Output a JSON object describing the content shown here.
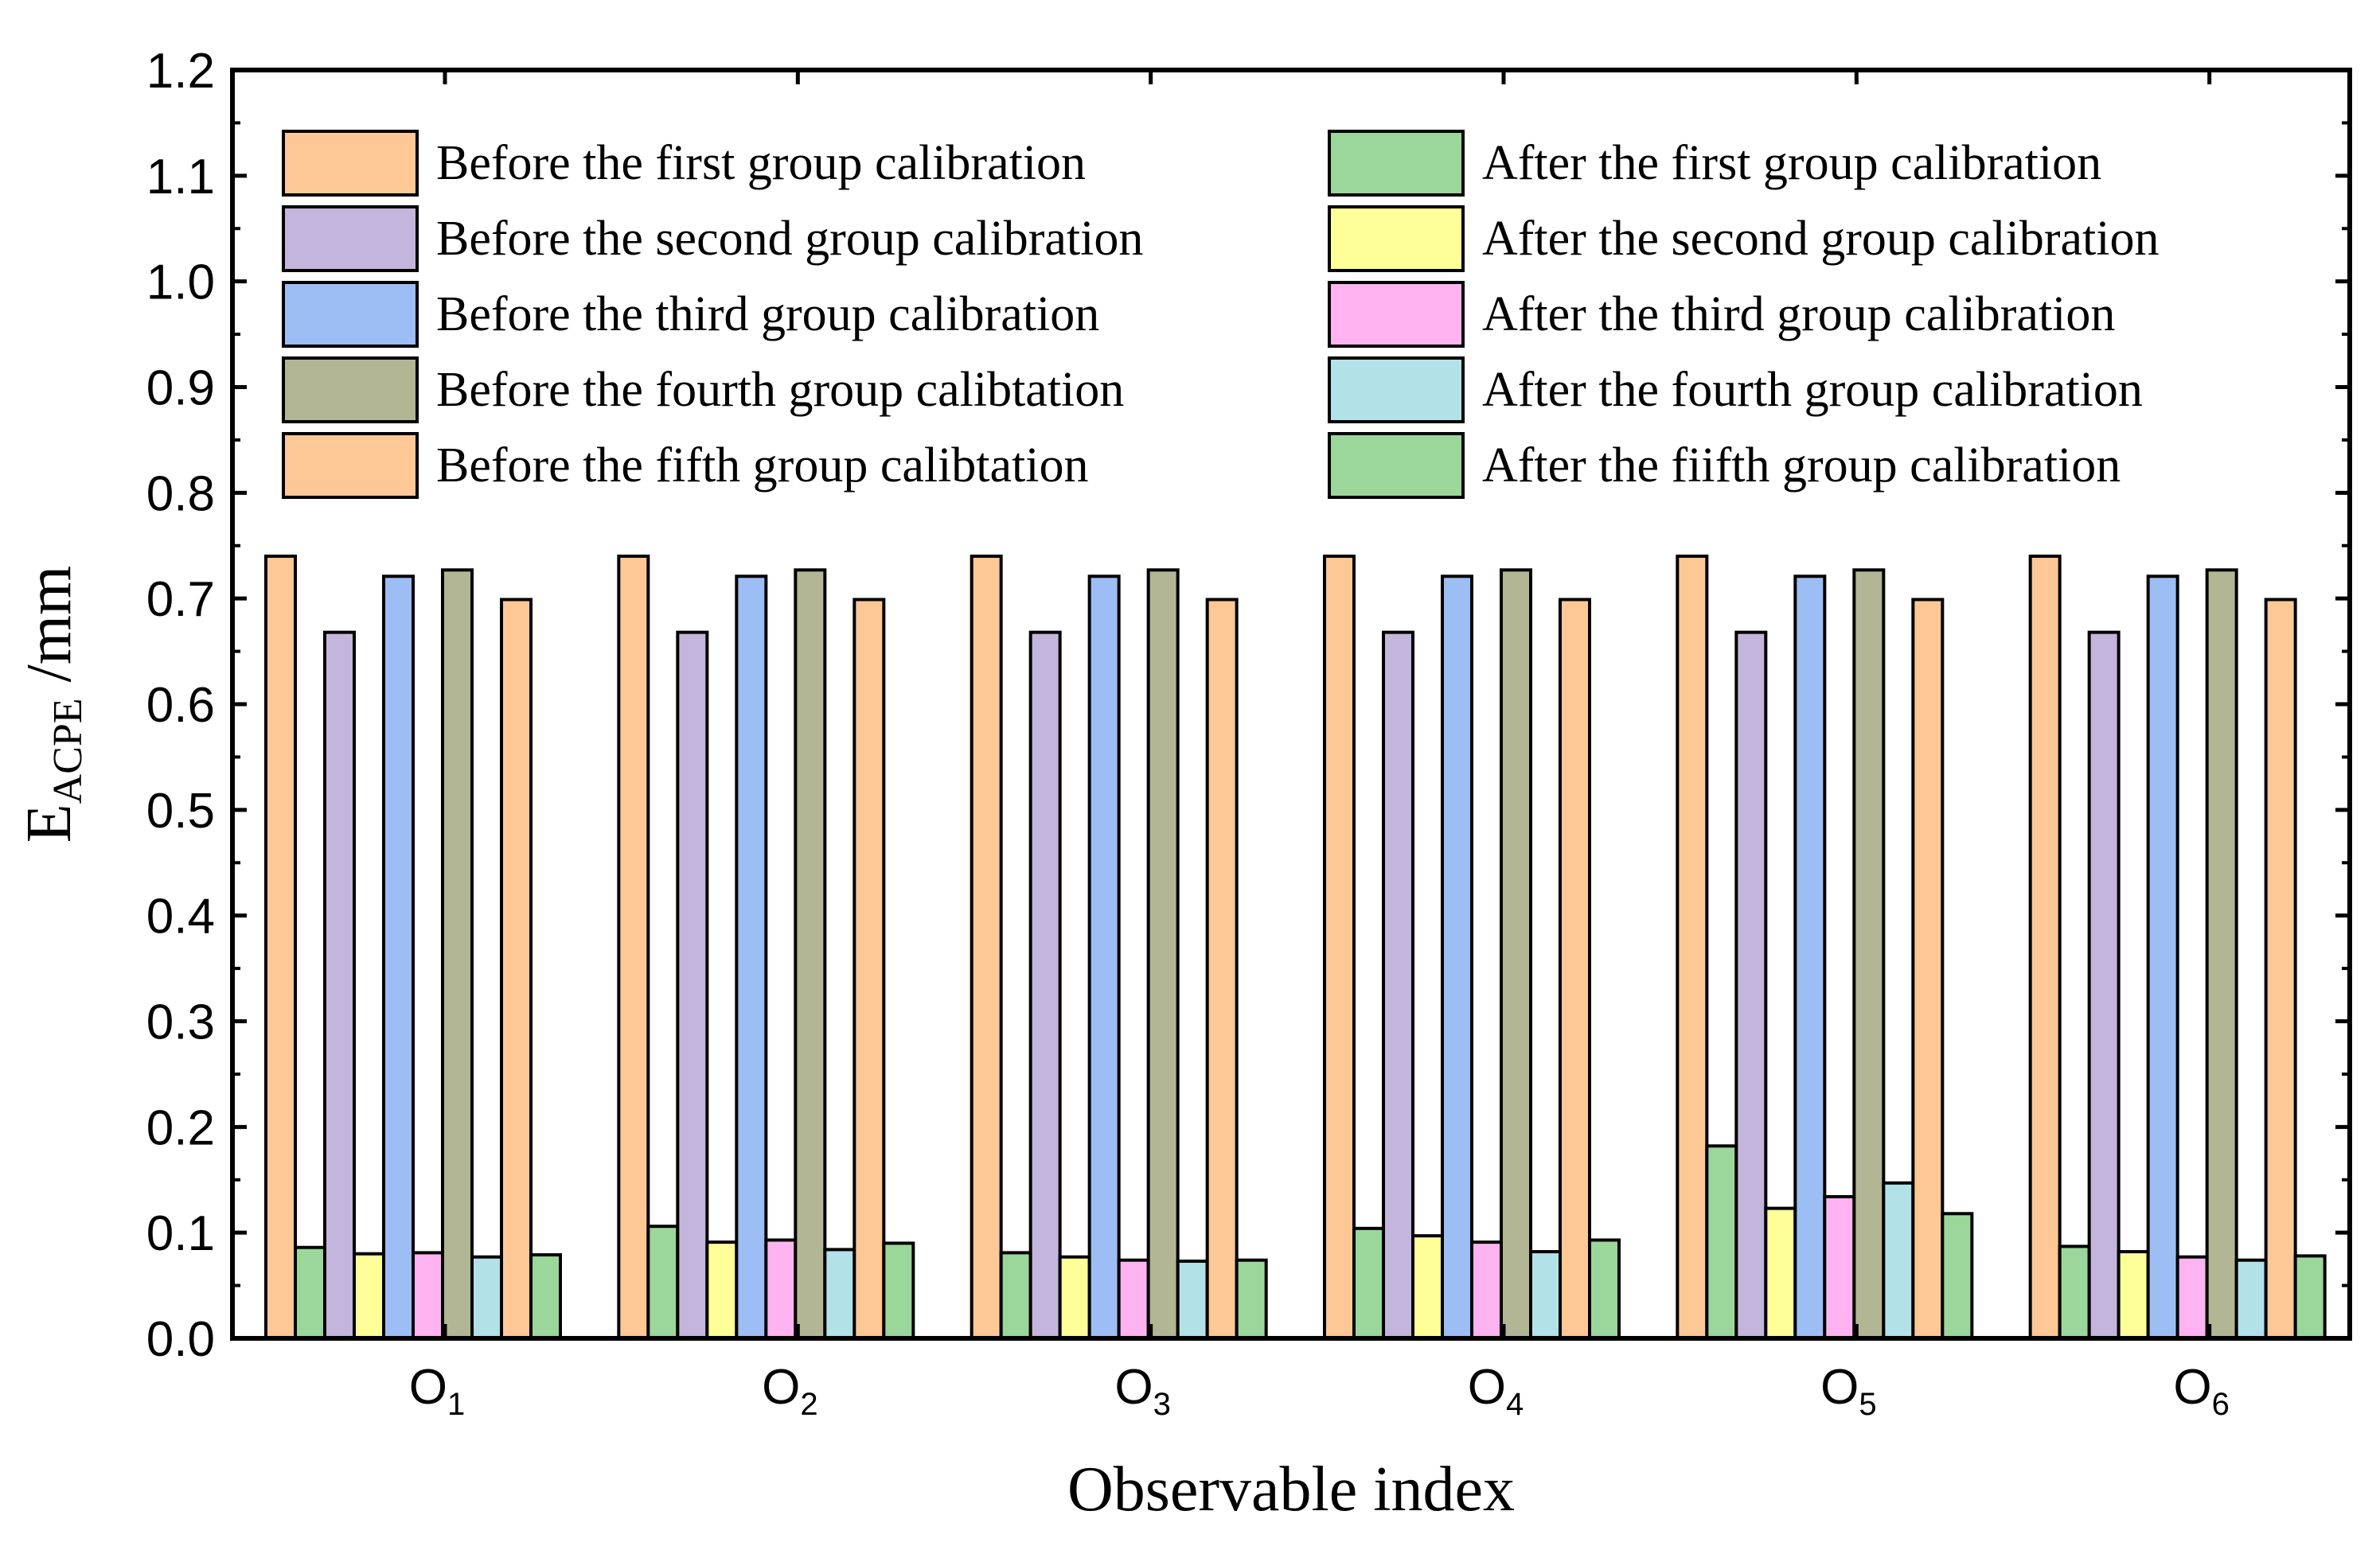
{
  "chart_data": {
    "type": "bar",
    "xlabel": "Observable index",
    "ylabel": {
      "main": "E",
      "sub": "ACPE",
      "unit": " /mm"
    },
    "ylim": [
      0,
      1.2
    ],
    "yticks": [
      "0.0",
      "0.1",
      "0.2",
      "0.3",
      "0.4",
      "0.5",
      "0.6",
      "0.7",
      "0.8",
      "0.9",
      "1.0",
      "1.1",
      "1.2"
    ],
    "categories": [
      {
        "main": "O",
        "sub": "1"
      },
      {
        "main": "O",
        "sub": "2"
      },
      {
        "main": "O",
        "sub": "3"
      },
      {
        "main": "O",
        "sub": "4"
      },
      {
        "main": "O",
        "sub": "5"
      },
      {
        "main": "O",
        "sub": "6"
      }
    ],
    "grid": false,
    "legend_position": "top",
    "series": [
      {
        "name": "Before the first group calibration",
        "color": "#FDC895",
        "values": [
          0.74,
          0.74,
          0.74,
          0.74,
          0.74,
          0.74
        ]
      },
      {
        "name": "After the first group calibration",
        "color": "#9BD79A",
        "values": [
          0.086,
          0.106,
          0.081,
          0.104,
          0.182,
          0.087
        ]
      },
      {
        "name": "Before the second group calibration",
        "color": "#C4B5DC",
        "values": [
          0.668,
          0.668,
          0.668,
          0.668,
          0.668,
          0.668
        ]
      },
      {
        "name": "After the second group calibration",
        "color": "#FFFF99",
        "values": [
          0.08,
          0.091,
          0.077,
          0.097,
          0.123,
          0.082
        ]
      },
      {
        "name": "Before the third group calibration",
        "color": "#9DBEF4",
        "values": [
          0.721,
          0.721,
          0.721,
          0.721,
          0.721,
          0.721
        ]
      },
      {
        "name": "After the third group calibration",
        "color": "#FFB3F0",
        "values": [
          0.081,
          0.093,
          0.074,
          0.091,
          0.134,
          0.077
        ]
      },
      {
        "name": "Before the fourth group calibtation",
        "color": "#B2B694",
        "values": [
          0.727,
          0.727,
          0.727,
          0.727,
          0.727,
          0.727
        ]
      },
      {
        "name": "After the fourth group calibration",
        "color": "#B2E2E8",
        "values": [
          0.077,
          0.084,
          0.073,
          0.082,
          0.147,
          0.074
        ]
      },
      {
        "name": "Before the fifth group calibtation",
        "color": "#FDC895",
        "values": [
          0.699,
          0.699,
          0.699,
          0.699,
          0.699,
          0.699
        ]
      },
      {
        "name": "After the fiifth group calibration",
        "color": "#9BD79A",
        "values": [
          0.079,
          0.09,
          0.074,
          0.093,
          0.118,
          0.078
        ]
      }
    ]
  }
}
